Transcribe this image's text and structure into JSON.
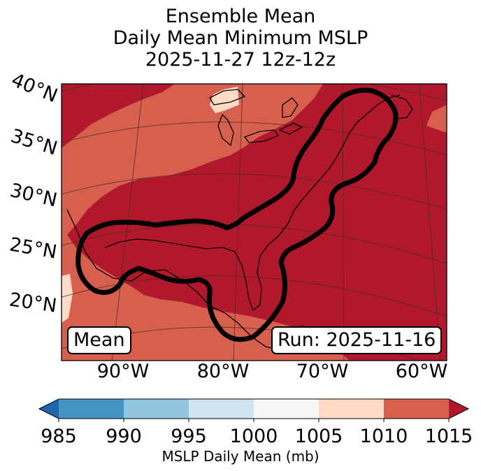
{
  "title": {
    "line1": "Ensemble Mean",
    "line2": "Daily Mean Minimum MSLP",
    "line3": "2025-11-27 12z-12z"
  },
  "map": {
    "lat_labels": [
      "40°N",
      "35°N",
      "30°N",
      "25°N",
      "20°N"
    ],
    "lon_labels": [
      "90°W",
      "80°W",
      "70°W",
      "60°W"
    ],
    "mean_box": "Mean",
    "run_box": "Run: 2025-11-16",
    "colors": {
      "c1010_1015": "#b2182b",
      "c1005_1010": "#d6604d",
      "c1000_1005": "#fddbc7",
      "contour": "#000000"
    }
  },
  "colorbar": {
    "ticks": [
      "985",
      "990",
      "995",
      "1000",
      "1005",
      "1010",
      "1015"
    ],
    "label": "MSLP Daily Mean (mb)",
    "colors": [
      "#2166ac",
      "#4393c3",
      "#92c5de",
      "#d1e5f0",
      "#f7f7f7",
      "#fddbc7",
      "#d6604d",
      "#b2182b"
    ]
  }
}
